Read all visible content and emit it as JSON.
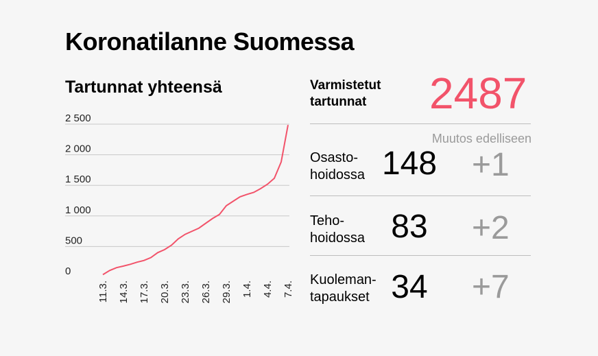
{
  "title": "Koronatilanne Suomessa",
  "chart_title": "Tartunnat yhteensä",
  "colors": {
    "line": "#f2536a",
    "accent": "#f2536a",
    "muted": "#9a9a9a",
    "grid": "#c8c8c8"
  },
  "chart_data": {
    "type": "line",
    "title": "Tartunnat yhteensä",
    "xlabel": "",
    "ylabel": "",
    "ylim": [
      0,
      2500
    ],
    "yticks": [
      0,
      500,
      1000,
      1500,
      2000,
      2500
    ],
    "ytick_labels": [
      "0",
      "500",
      "1 000",
      "1 500",
      "2 000",
      "2 500"
    ],
    "xticks": [
      "11.3.",
      "14.3.",
      "17.3.",
      "20.3.",
      "23.3.",
      "26.3.",
      "29.3.",
      "1.4.",
      "4.4.",
      "7.4."
    ],
    "x": [
      "11.3.",
      "12.3.",
      "13.3.",
      "14.3.",
      "15.3.",
      "16.3.",
      "17.3.",
      "18.3.",
      "19.3.",
      "20.3.",
      "21.3.",
      "22.3.",
      "23.3.",
      "24.3.",
      "25.3.",
      "26.3.",
      "27.3.",
      "28.3.",
      "29.3.",
      "30.3.",
      "31.3.",
      "1.4.",
      "2.4.",
      "3.4.",
      "4.4.",
      "5.4.",
      "6.4.",
      "7.4."
    ],
    "y": [
      40,
      109,
      155,
      180,
      210,
      244,
      272,
      319,
      400,
      450,
      521,
      626,
      700,
      750,
      800,
      880,
      958,
      1025,
      1167,
      1240,
      1313,
      1352,
      1384,
      1446,
      1518,
      1615,
      1882,
      2487
    ],
    "grid": true,
    "legend": "none"
  },
  "confirmed": {
    "label_line1": "Varmistetut",
    "label_line2": "tartunnat",
    "value": "2487"
  },
  "change_header": "Muutos edelliseen",
  "stats": [
    {
      "label_line1": "Osasto-",
      "label_line2": "hoidossa",
      "value": "148",
      "change": "+1"
    },
    {
      "label_line1": "Teho-",
      "label_line2": "hoidossa",
      "value": "83",
      "change": "+2"
    },
    {
      "label_line1": "Kuoleman-",
      "label_line2": "tapaukset",
      "value": "34",
      "change": "+7"
    }
  ]
}
